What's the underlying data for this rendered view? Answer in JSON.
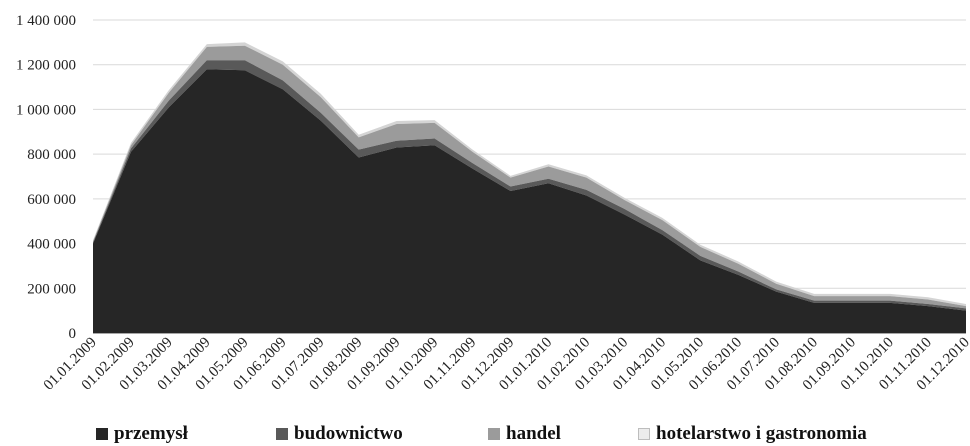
{
  "chart_data": {
    "type": "area",
    "stacked": true,
    "x": [
      "01.01.2009",
      "01.02.2009",
      "01.03.2009",
      "01.04.2009",
      "01.05.2009",
      "01.06.2009",
      "01.07.2009",
      "01.08.2009",
      "01.09.2009",
      "01.10.2009",
      "01.11.2009",
      "01.12.2009",
      "01.01.2010",
      "01.02.2010",
      "01.03.2010",
      "01.04.2010",
      "01.05.2010",
      "01.06.2010",
      "01.07.2010",
      "01.08.2010",
      "01.09.2010",
      "01.10.2010",
      "01.11.2010",
      "01.12.2010"
    ],
    "series": [
      {
        "name": "przemysł",
        "color": "#262626",
        "values": [
          400000,
          810000,
          1010000,
          1180000,
          1175000,
          1090000,
          950000,
          785000,
          830000,
          840000,
          735000,
          635000,
          670000,
          615000,
          530000,
          440000,
          325000,
          260000,
          185000,
          135000,
          135000,
          135000,
          120000,
          100000
        ]
      },
      {
        "name": "budownictwo",
        "color": "#595959",
        "values": [
          5000,
          15000,
          30000,
          40000,
          45000,
          40000,
          35000,
          35000,
          30000,
          30000,
          25000,
          20000,
          20000,
          25000,
          25000,
          20000,
          20000,
          15000,
          10000,
          10000,
          10000,
          10000,
          10000,
          10000
        ]
      },
      {
        "name": "handel",
        "color": "#9b9b9b",
        "values": [
          5000,
          15000,
          35000,
          60000,
          65000,
          70000,
          70000,
          55000,
          75000,
          70000,
          50000,
          40000,
          55000,
          55000,
          40000,
          45000,
          40000,
          35000,
          25000,
          20000,
          20000,
          20000,
          20000,
          10000
        ]
      },
      {
        "name": "hotelarstwo i gastronomia",
        "color": "#d4d4d4",
        "values": [
          5000,
          10000,
          12000,
          12000,
          15000,
          15000,
          15000,
          12000,
          13000,
          12000,
          10000,
          8000,
          10000,
          10000,
          10000,
          10000,
          10000,
          10000,
          10000,
          10000,
          10000,
          10000,
          10000,
          10000
        ]
      }
    ],
    "y_ticks": [
      "0",
      "200 000",
      "400 000",
      "600 000",
      "800 000",
      "1 000 000",
      "1 200 000",
      "1 400 000"
    ],
    "ylim": [
      0,
      1400000
    ],
    "grid": true,
    "legend": "bottom",
    "title": "",
    "xlabel": "",
    "ylabel": ""
  }
}
